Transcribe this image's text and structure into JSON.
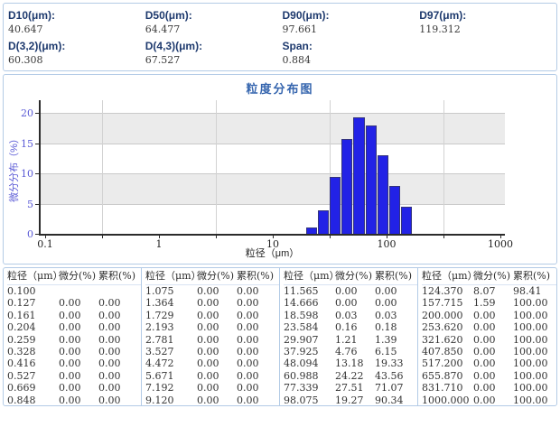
{
  "params_panel": {
    "items": [
      {
        "label": "D10(μm):",
        "value": "40.647"
      },
      {
        "label": "D50(μm):",
        "value": "64.477"
      },
      {
        "label": "D90(μm):",
        "value": "97.661"
      },
      {
        "label": "D97(μm):",
        "value": "119.312"
      },
      {
        "label": "D(3,2)(μm):",
        "value": "60.308"
      },
      {
        "label": "D(4,3)(μm):",
        "value": "67.527"
      },
      {
        "label": "Span:",
        "value": "0.884"
      }
    ]
  },
  "chart_data": {
    "type": "bar",
    "title": "粒度分布图",
    "xlabel": "粒径（μm）",
    "ylabel": "微分分布（%）",
    "x_scale": "log",
    "xlim": [
      0.089,
      1100
    ],
    "ylim": [
      0,
      22.2
    ],
    "x_tick_values": [
      0.1,
      1,
      10,
      100,
      1000
    ],
    "x_tick_labels": [
      "0.1",
      "1",
      "10",
      "100",
      "1000"
    ],
    "x_minor_ticks": [
      0.3162,
      3.162,
      31.62,
      316.2
    ],
    "y_ticks": [
      0,
      5,
      10,
      15,
      20
    ],
    "shaded_bands": [
      [
        5,
        10
      ],
      [
        15,
        20
      ]
    ],
    "grid": "on",
    "series": [
      {
        "name": "微分分布(%)",
        "bin_edges": [
          19.7,
          25.0,
          31.8,
          40.4,
          51.3,
          65.1,
          82.7,
          105.0,
          133.4,
          169.4
        ],
        "values": [
          1.2,
          4.0,
          9.5,
          15.8,
          19.4,
          18.0,
          13.2,
          8.0,
          4.6
        ]
      }
    ],
    "bar_fill": "#2222e6",
    "bar_border": "#34347c"
  },
  "table": {
    "headers": [
      "粒径（μm）",
      "微分(%)",
      "累积(%)"
    ],
    "groups": [
      {
        "rows": [
          [
            "0.100",
            "",
            ""
          ],
          [
            "0.127",
            "0.00",
            "0.00"
          ],
          [
            "0.161",
            "0.00",
            "0.00"
          ],
          [
            "0.204",
            "0.00",
            "0.00"
          ],
          [
            "0.259",
            "0.00",
            "0.00"
          ],
          [
            "0.328",
            "0.00",
            "0.00"
          ],
          [
            "0.416",
            "0.00",
            "0.00"
          ],
          [
            "0.527",
            "0.00",
            "0.00"
          ],
          [
            "0.669",
            "0.00",
            "0.00"
          ],
          [
            "0.848",
            "0.00",
            "0.00"
          ]
        ]
      },
      {
        "rows": [
          [
            "1.075",
            "0.00",
            "0.00"
          ],
          [
            "1.364",
            "0.00",
            "0.00"
          ],
          [
            "1.729",
            "0.00",
            "0.00"
          ],
          [
            "2.193",
            "0.00",
            "0.00"
          ],
          [
            "2.781",
            "0.00",
            "0.00"
          ],
          [
            "3.527",
            "0.00",
            "0.00"
          ],
          [
            "4.472",
            "0.00",
            "0.00"
          ],
          [
            "5.671",
            "0.00",
            "0.00"
          ],
          [
            "7.192",
            "0.00",
            "0.00"
          ],
          [
            "9.120",
            "0.00",
            "0.00"
          ]
        ]
      },
      {
        "rows": [
          [
            "11.565",
            "0.00",
            "0.00"
          ],
          [
            "14.666",
            "0.00",
            "0.00"
          ],
          [
            "18.598",
            "0.03",
            "0.03"
          ],
          [
            "23.584",
            "0.16",
            "0.18"
          ],
          [
            "29.907",
            "1.21",
            "1.39"
          ],
          [
            "37.925",
            "4.76",
            "6.15"
          ],
          [
            "48.094",
            "13.18",
            "19.33"
          ],
          [
            "60.988",
            "24.22",
            "43.56"
          ],
          [
            "77.339",
            "27.51",
            "71.07"
          ],
          [
            "98.075",
            "19.27",
            "90.34"
          ]
        ]
      },
      {
        "rows": [
          [
            "124.370",
            "8.07",
            "98.41"
          ],
          [
            "157.715",
            "1.59",
            "100.00"
          ],
          [
            "200.000",
            "0.00",
            "100.00"
          ],
          [
            "253.620",
            "0.00",
            "100.00"
          ],
          [
            "321.620",
            "0.00",
            "100.00"
          ],
          [
            "407.850",
            "0.00",
            "100.00"
          ],
          [
            "517.200",
            "0.00",
            "100.00"
          ],
          [
            "655.870",
            "0.00",
            "100.00"
          ],
          [
            "831.710",
            "0.00",
            "100.00"
          ],
          [
            "1000.000",
            "0.00",
            "100.00"
          ]
        ]
      }
    ]
  },
  "colors": {
    "panel_border": "#b3cbe6",
    "label_blue": "#1e3a6e",
    "title_blue": "#3565ae",
    "axis_tick_blue": "#5b5bd6",
    "band_gray": "#ebebeb",
    "grid_gray": "#c9c9c9",
    "axis_dark": "#2b2b2b",
    "table_text": "#333333"
  }
}
